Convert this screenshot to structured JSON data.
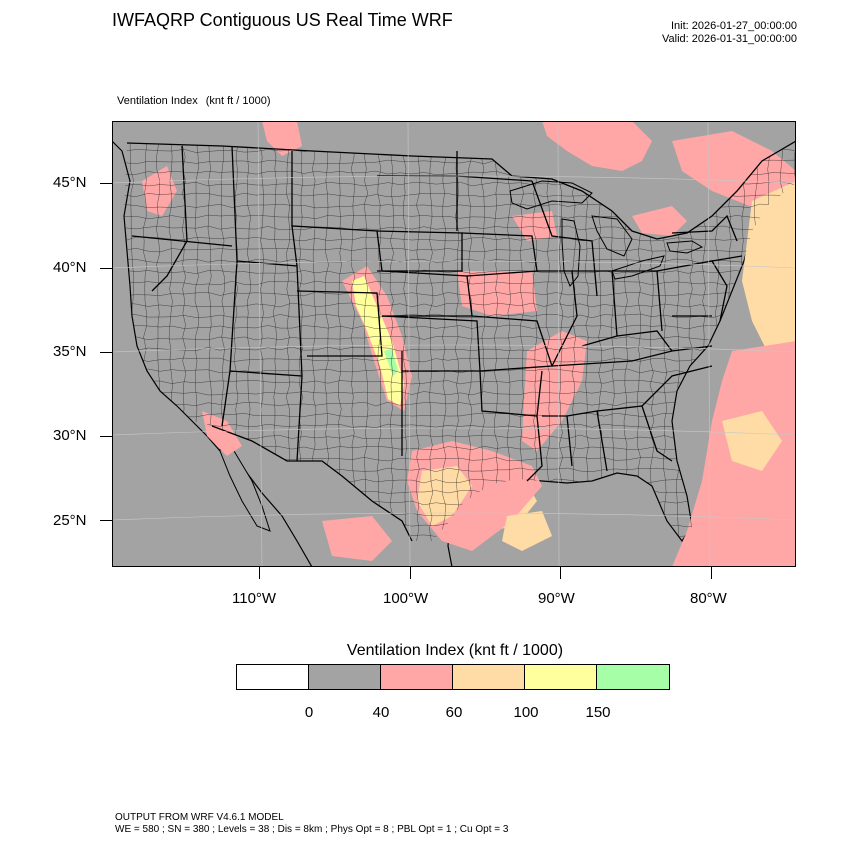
{
  "header": {
    "title": "IWFAQRP Contiguous US Real Time WRF",
    "init": "Init: 2026-01-27_00:00:00",
    "valid": "Valid: 2026-01-31_00:00:00"
  },
  "field": {
    "name": "Ventilation Index",
    "units": "(knt ft / 1000)"
  },
  "map": {
    "latitude_labels": [
      "45°N",
      "40°N",
      "35°N",
      "30°N",
      "25°N"
    ],
    "longitude_labels": [
      "110°W",
      "100°W",
      "90°W",
      "80°W"
    ],
    "colors": {
      "ocean": "#a3a3a3",
      "land": "#a3a3a3",
      "lakes": "#a3a3a3",
      "borders": "#000000",
      "county_lines": "#1a1a1a"
    }
  },
  "legend": {
    "title": "Ventilation Index  (knt ft / 1000)",
    "colors": [
      "#ffffff",
      "#a3a3a3",
      "#ffa6a6",
      "#ffdca6",
      "#ffff9e",
      "#a6ffa6"
    ],
    "ticks": [
      "0",
      "40",
      "60",
      "100",
      "150"
    ]
  },
  "footer": {
    "line1": "OUTPUT FROM WRF V4.6.1 MODEL",
    "line2": "WE = 580 ; SN = 380 ; Levels = 38 ; Dis = 8km ; Phys Opt = 8 ; PBL Opt = 1 ; Cu Opt = 3"
  }
}
